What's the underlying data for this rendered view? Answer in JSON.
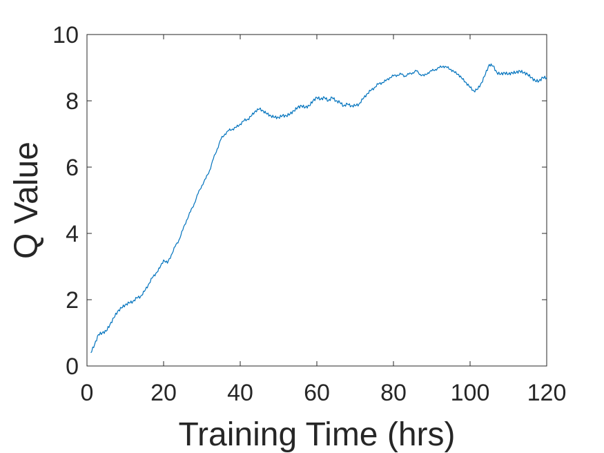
{
  "chart_data": {
    "type": "line",
    "title": "",
    "xlabel": "Training Time (hrs)",
    "ylabel": "Q Value",
    "xlim": [
      0,
      120
    ],
    "ylim": [
      0,
      10
    ],
    "xticks": [
      0,
      20,
      40,
      60,
      80,
      100,
      120
    ],
    "yticks": [
      0,
      2,
      4,
      6,
      8,
      10
    ],
    "grid": false,
    "legend": "none",
    "series": [
      {
        "color": "#0072bd",
        "x": [
          1,
          2,
          3,
          4,
          5,
          6,
          7,
          8,
          9,
          10,
          11,
          12,
          13,
          14,
          15,
          16,
          17,
          18,
          19,
          20,
          21,
          22,
          23,
          24,
          25,
          26,
          27,
          28,
          29,
          30,
          31,
          32,
          33,
          34,
          35,
          36,
          37,
          38,
          39,
          40,
          41,
          42,
          43,
          44,
          45,
          46,
          47,
          48,
          49,
          50,
          51,
          52,
          53,
          54,
          55,
          56,
          57,
          58,
          59,
          60,
          61,
          62,
          63,
          64,
          65,
          66,
          67,
          68,
          69,
          70,
          71,
          72,
          73,
          74,
          75,
          76,
          77,
          78,
          79,
          80,
          81,
          82,
          83,
          84,
          85,
          86,
          87,
          88,
          89,
          90,
          91,
          92,
          93,
          94,
          95,
          96,
          97,
          98,
          99,
          100,
          101,
          102,
          103,
          104,
          105,
          106,
          107,
          108,
          109,
          110,
          111,
          112,
          113,
          114,
          115,
          116,
          117,
          118,
          119,
          120
        ],
        "y": [
          0.4,
          0.65,
          0.95,
          1.0,
          1.05,
          1.25,
          1.45,
          1.65,
          1.75,
          1.85,
          1.9,
          1.95,
          2.05,
          2.1,
          2.25,
          2.45,
          2.65,
          2.8,
          2.95,
          3.2,
          3.1,
          3.35,
          3.6,
          3.8,
          4.1,
          4.4,
          4.65,
          4.9,
          5.2,
          5.45,
          5.65,
          5.9,
          6.25,
          6.55,
          6.85,
          7.0,
          7.1,
          7.15,
          7.2,
          7.3,
          7.4,
          7.45,
          7.55,
          7.7,
          7.75,
          7.7,
          7.6,
          7.55,
          7.5,
          7.5,
          7.55,
          7.55,
          7.6,
          7.7,
          7.8,
          7.85,
          7.8,
          7.85,
          8.0,
          8.1,
          8.05,
          8.1,
          8.0,
          8.1,
          8.0,
          7.95,
          7.85,
          7.9,
          7.85,
          7.85,
          7.9,
          8.05,
          8.2,
          8.3,
          8.4,
          8.5,
          8.55,
          8.6,
          8.7,
          8.75,
          8.78,
          8.8,
          8.75,
          8.8,
          8.85,
          8.9,
          8.8,
          8.75,
          8.85,
          8.9,
          8.95,
          9.0,
          9.05,
          9.0,
          8.95,
          8.85,
          8.8,
          8.65,
          8.55,
          8.4,
          8.3,
          8.35,
          8.55,
          8.8,
          9.1,
          9.05,
          8.85,
          8.8,
          8.85,
          8.8,
          8.85,
          8.85,
          8.9,
          8.85,
          8.8,
          8.7,
          8.6,
          8.6,
          8.7,
          8.7
        ]
      }
    ]
  }
}
